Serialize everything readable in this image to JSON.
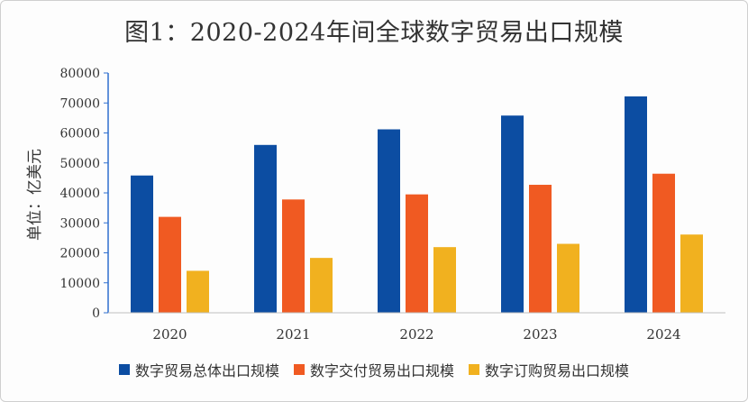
{
  "chart_data": {
    "type": "bar",
    "title": "图1：2020-2024年间全球数字贸易出口规模",
    "xlabel": "",
    "ylabel": "单位：亿美元",
    "ylim": [
      0,
      80000
    ],
    "yticks": [
      0,
      10000,
      20000,
      30000,
      40000,
      50000,
      60000,
      70000,
      80000
    ],
    "categories": [
      "2020",
      "2021",
      "2022",
      "2023",
      "2024"
    ],
    "legend_position": "bottom",
    "grid": false,
    "series": [
      {
        "name": "数字贸易总体出口规模",
        "color": "#0c4da2",
        "values": [
          45800,
          56000,
          61200,
          65800,
          72200
        ]
      },
      {
        "name": "数字交付贸易出口规模",
        "color": "#f05a22",
        "values": [
          32000,
          37800,
          39500,
          42700,
          46400
        ]
      },
      {
        "name": "数字订购贸易出口规模",
        "color": "#f1b11f",
        "values": [
          14000,
          18300,
          21900,
          23000,
          26100
        ]
      }
    ]
  }
}
